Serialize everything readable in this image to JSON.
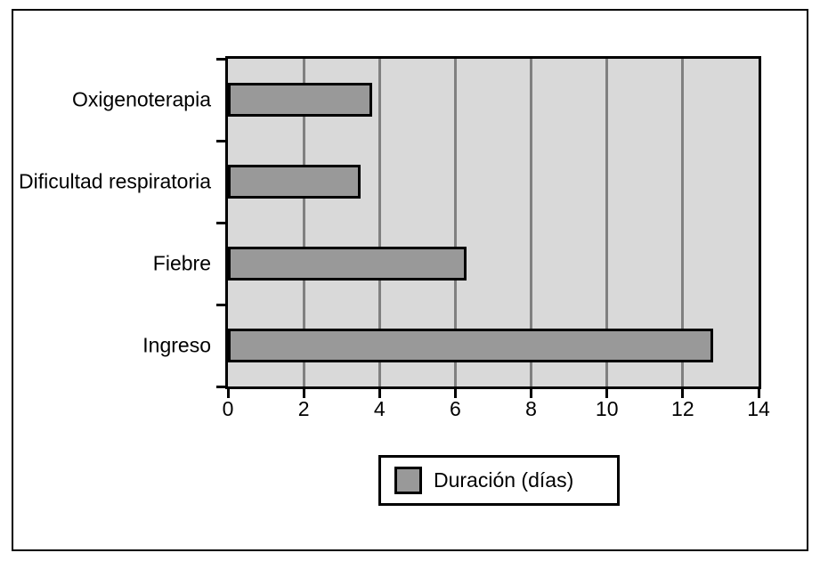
{
  "chart_data": {
    "type": "bar",
    "orientation": "horizontal",
    "title": "",
    "categories": [
      "Oxigenoterapia",
      "Dificultad respiratoria",
      "Fiebre",
      "Ingreso"
    ],
    "values": [
      3.8,
      3.5,
      6.3,
      12.8
    ],
    "series_name": "Duración (días)",
    "xlim": [
      0,
      14
    ],
    "x_ticks": [
      0,
      2,
      4,
      6,
      8,
      10,
      12,
      14
    ],
    "grid": true,
    "legend_position": "bottom-center",
    "colors": {
      "bar_fill": "#999999",
      "bar_border": "#000000",
      "plot_background": "#d9d9d9",
      "gridline": "#808080",
      "axis": "#000000",
      "page_background": "#ffffff"
    }
  },
  "legend": {
    "label": "Duración (días)"
  }
}
